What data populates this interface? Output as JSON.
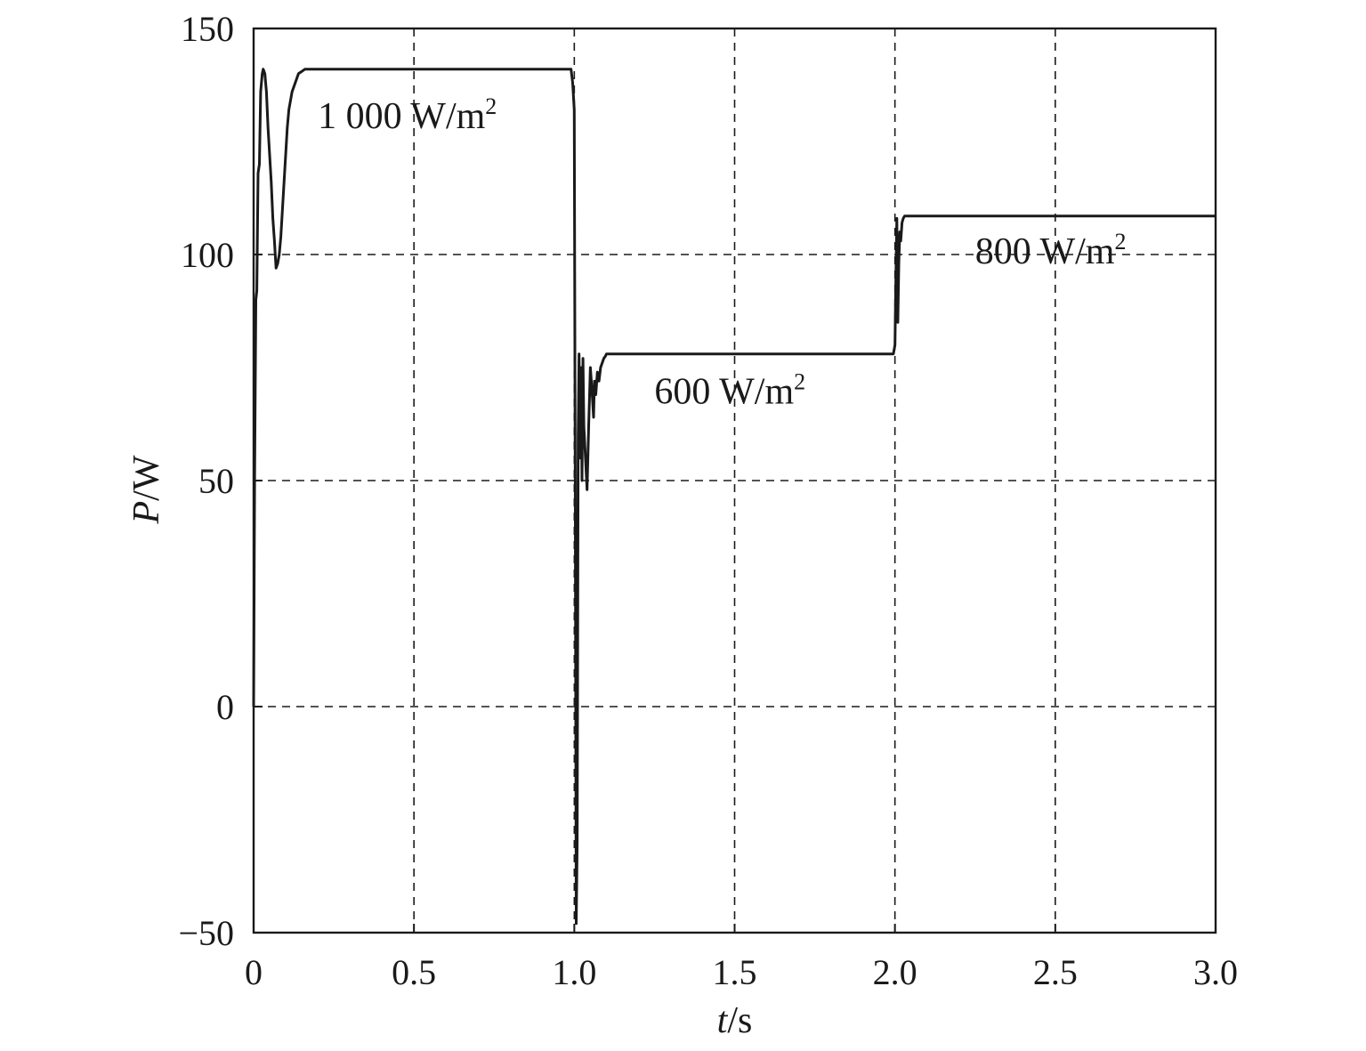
{
  "chart_data": {
    "type": "line",
    "xlabel": {
      "italic": "t",
      "rest": "/s"
    },
    "ylabel": {
      "italic": "P",
      "rest": "/W"
    },
    "xlim": [
      0,
      3.0
    ],
    "ylim": [
      -50,
      150
    ],
    "xticks": [
      0,
      0.5,
      1.0,
      1.5,
      2.0,
      2.5,
      3.0
    ],
    "xtick_labels": [
      "0",
      "0.5",
      "1.0",
      "1.5",
      "2.0",
      "2.5",
      "3.0"
    ],
    "yticks": [
      -50,
      0,
      50,
      100,
      150
    ],
    "ytick_labels": [
      "−50",
      "0",
      "50",
      "100",
      "150"
    ],
    "grid": true,
    "annotations": [
      {
        "base": "1 000 W/m",
        "sup": "2",
        "x": 0.2,
        "y": 128
      },
      {
        "base": "600 W/m",
        "sup": "2",
        "x": 1.25,
        "y": 67
      },
      {
        "base": "800 W/m",
        "sup": "2",
        "x": 2.25,
        "y": 98
      }
    ],
    "series": [
      {
        "x": [
          0,
          0.003,
          0.007,
          0.01,
          0.014,
          0.018,
          0.022,
          0.027,
          0.03,
          0.035,
          0.04,
          0.045,
          0.05,
          0.055,
          0.06,
          0.065,
          0.07,
          0.075,
          0.08,
          0.085,
          0.09,
          0.095,
          0.1,
          0.105,
          0.11,
          0.12,
          0.13,
          0.14,
          0.15,
          0.16,
          0.17,
          0.2,
          0.4,
          0.6,
          0.8,
          0.99,
          0.995,
          1.0,
          1.003,
          1.006,
          1.009,
          1.012,
          1.015,
          1.018,
          1.021,
          1.024,
          1.027,
          1.03,
          1.035,
          1.04,
          1.045,
          1.05,
          1.055,
          1.06,
          1.063,
          1.067,
          1.072,
          1.077,
          1.082,
          1.087,
          1.092,
          1.097,
          1.1,
          1.11,
          1.12,
          1.13,
          1.15,
          1.3,
          1.5,
          1.7,
          1.9,
          1.995,
          2.0,
          2.003,
          2.006,
          2.009,
          2.012,
          2.015,
          2.018,
          2.022,
          2.026,
          2.03,
          2.04,
          2.05,
          2.1,
          2.3,
          2.5,
          2.7,
          3.0
        ],
        "y": [
          0,
          50,
          90,
          92,
          118,
          120,
          136,
          140,
          141,
          140,
          136,
          128,
          122,
          116,
          108,
          103,
          97,
          98,
          100,
          104,
          110,
          116,
          122,
          128,
          132,
          136,
          138,
          140,
          140.5,
          141,
          141,
          141,
          141,
          141,
          141,
          141,
          138,
          132,
          50,
          -48,
          -30,
          60,
          78,
          55,
          75,
          50,
          77,
          62,
          55,
          48,
          62,
          75,
          70,
          64,
          72,
          69,
          74,
          72,
          75,
          76,
          77,
          77.5,
          78,
          78,
          78,
          78,
          78,
          78,
          78,
          78,
          78,
          78,
          80,
          95,
          108,
          85,
          98,
          105,
          103,
          107,
          108,
          108.5,
          108.5,
          108.5,
          108.5,
          108.5,
          108.5,
          108.5,
          108.5
        ]
      }
    ]
  }
}
